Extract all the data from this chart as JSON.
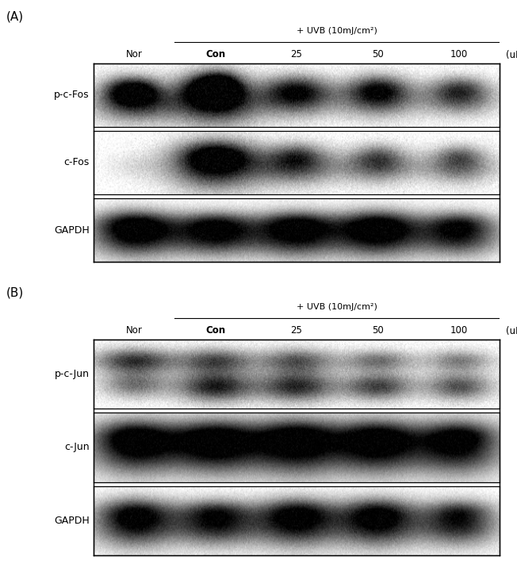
{
  "panel_A_label": "(A)",
  "panel_B_label": "(B)",
  "uvb_label": "+ UVB (10mJ/cm²)",
  "col_labels": [
    "Nor",
    "Con",
    "25",
    "50",
    "100",
    "(uM)"
  ],
  "panel_A_row_labels": [
    "p-c-Fos",
    "c-Fos",
    "GAPDH"
  ],
  "panel_B_row_labels": [
    "p-c-Jun",
    "c-Jun",
    "GAPDH"
  ],
  "font_size_label": 9,
  "font_size_col": 8.5,
  "font_size_panel": 11
}
